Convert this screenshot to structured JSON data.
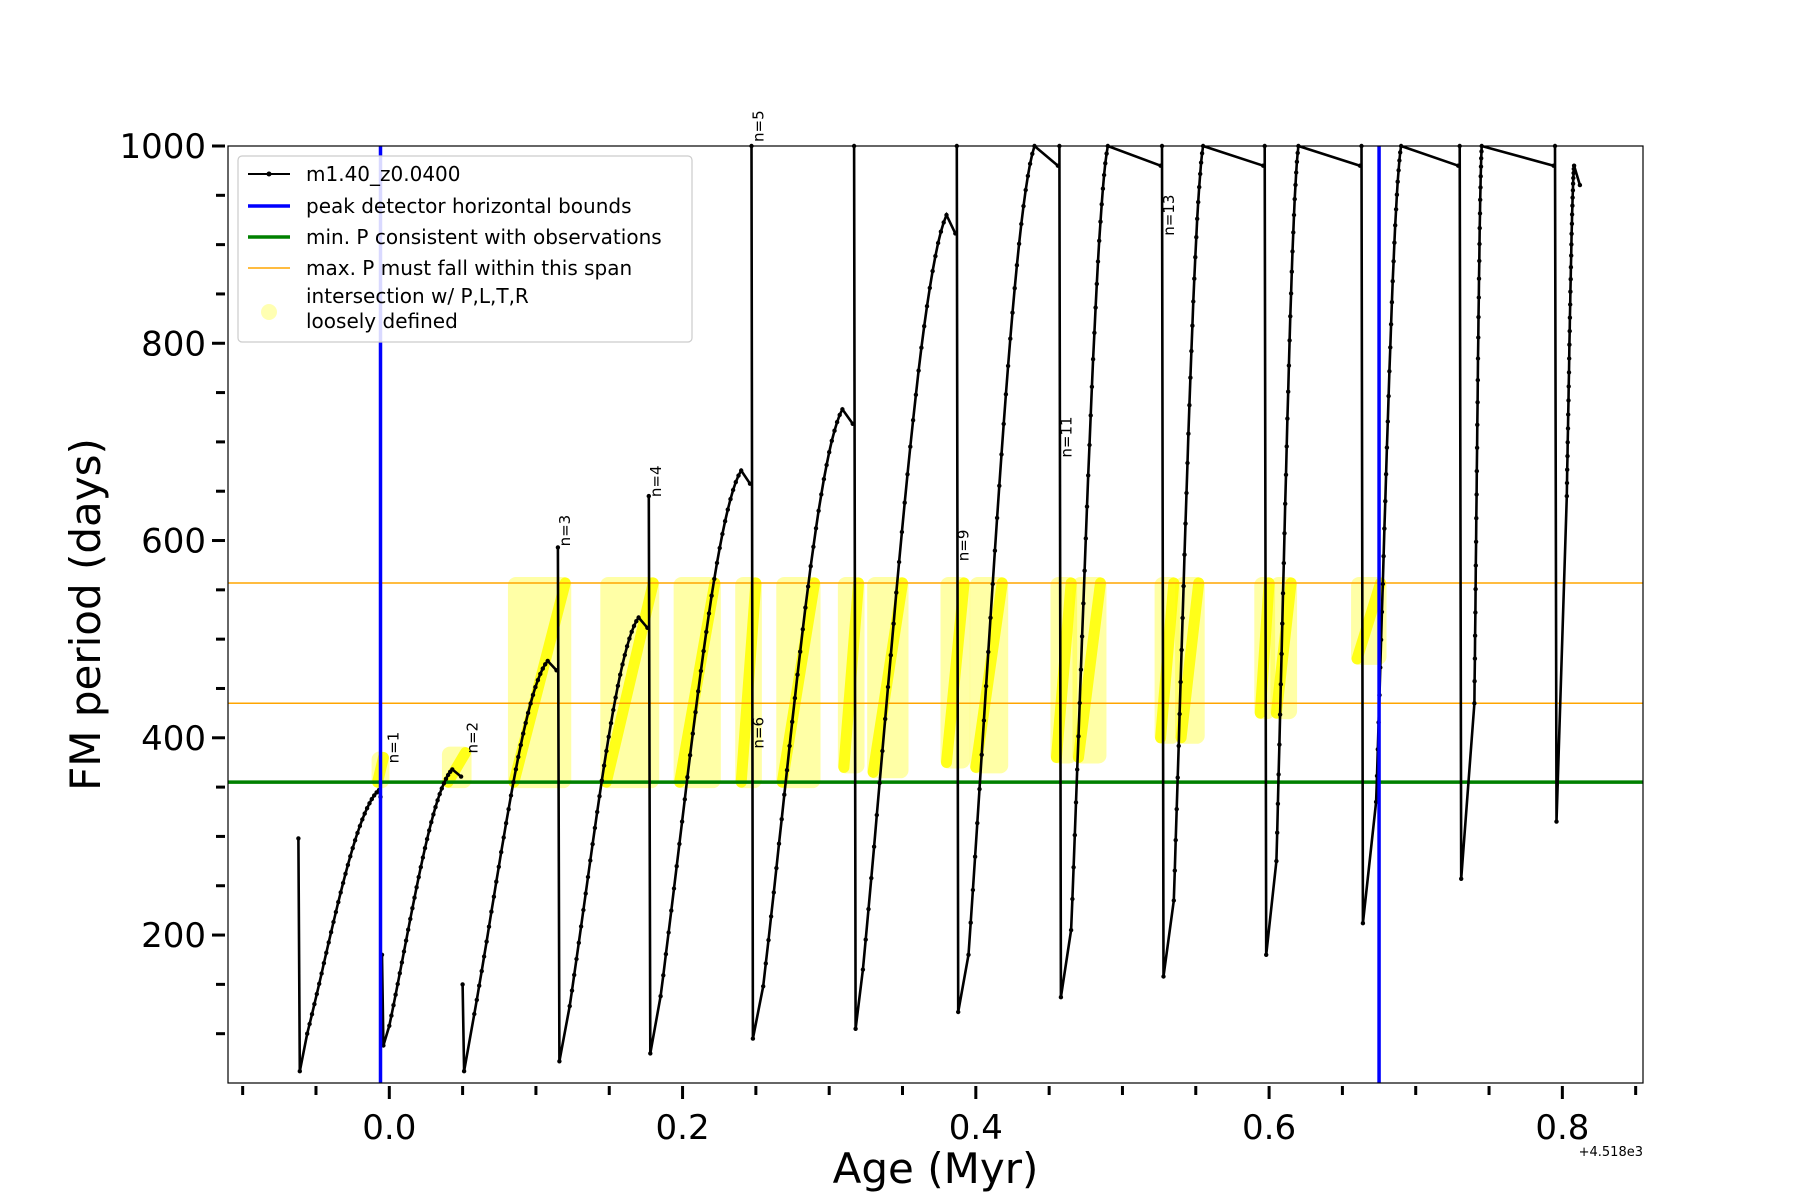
{
  "chart_data": {
    "type": "line",
    "title": "",
    "xlabel": "Age (Myr)",
    "ylabel": "FM period (days)",
    "x_offset_label": "+4.518e3",
    "xlim": [
      -0.11,
      0.855
    ],
    "ylim": [
      50,
      1000
    ],
    "x_ticks": [
      0.0,
      0.2,
      0.4,
      0.6,
      0.8
    ],
    "x_tick_labels": [
      "0.0",
      "0.2",
      "0.4",
      "0.6",
      "0.8"
    ],
    "x_minor_ticks": [
      -0.1,
      -0.05,
      0.05,
      0.1,
      0.15,
      0.25,
      0.3,
      0.35,
      0.45,
      0.5,
      0.55,
      0.65,
      0.7,
      0.75,
      0.85
    ],
    "y_ticks": [
      200,
      400,
      600,
      800,
      1000
    ],
    "y_tick_labels": [
      "200",
      "400",
      "600",
      "800",
      "1000"
    ],
    "y_minor_ticks": [
      100,
      150,
      250,
      300,
      350,
      450,
      500,
      550,
      650,
      700,
      750,
      850,
      900,
      950
    ],
    "legend": {
      "location": "upper-left",
      "entries": [
        {
          "label": "m1.40_z0.0400",
          "style": "black line with markers"
        },
        {
          "label": "peak detector horizontal bounds",
          "style": "blue line"
        },
        {
          "label": "min. P consistent with observations",
          "style": "green line"
        },
        {
          "label": "max. P must fall within this span",
          "style": "orange line"
        },
        {
          "label_lines": [
            "intersection w/ P,L,T,R",
            "loosely defined"
          ],
          "style": "yellow circle"
        }
      ]
    },
    "vertical_lines": [
      {
        "name": "peak detector horizontal bounds",
        "x": -0.006,
        "color": "#0000ff"
      },
      {
        "name": "peak detector horizontal bounds",
        "x": 0.675,
        "color": "#0000ff"
      }
    ],
    "horizontal_lines": [
      {
        "name": "min. P consistent with observations",
        "y": 355,
        "color": "#008000"
      },
      {
        "name": "max. P must fall within this span",
        "y": 435,
        "color": "#ffa500"
      },
      {
        "name": "max. P must fall within this span",
        "y": 557,
        "color": "#ffa500"
      }
    ],
    "series": [
      {
        "name": "m1.40_z0.0400",
        "color": "#000000",
        "pulses": [
          {
            "x_start": -0.062,
            "x_peak": -0.007,
            "y_peak": 347,
            "x_end": 0.052,
            "y_min": 62,
            "y_spike": 298,
            "x_min": -0.056,
            "y_min_bottom": 100
          },
          {
            "x_start": -0.005,
            "x_peak": 0.043,
            "y_peak": 368,
            "x_min": 0.0,
            "y_min": 88,
            "y_spike": 180,
            "y_min_bottom": 108
          },
          {
            "x_start": 0.05,
            "x_peak": 0.108,
            "y_peak": 478,
            "x_min": 0.058,
            "y_min": 62,
            "y_spike": 150,
            "y_min_bottom": 120
          },
          {
            "x_start": 0.115,
            "x_peak": 0.17,
            "y_peak": 522,
            "x_min": 0.123,
            "y_min": 72,
            "y_spike": 593,
            "y_min_bottom": 128
          },
          {
            "x_start": 0.177,
            "x_peak": 0.24,
            "y_peak": 671,
            "x_min": 0.185,
            "y_min": 80,
            "y_spike": 645,
            "y_min_bottom": 138
          },
          {
            "x_start": 0.247,
            "x_peak": 0.309,
            "y_peak": 733,
            "x_min": 0.255,
            "y_min": 95,
            "y_spike": 1000,
            "y_min_bottom": 148
          },
          {
            "x_start": 0.317,
            "x_peak": 0.38,
            "y_peak": 930,
            "x_min": 0.323,
            "y_min": 105,
            "y_spike": 1000,
            "y_min_bottom": 165
          },
          {
            "x_start": 0.387,
            "x_peak": 0.44,
            "y_peak": 1000,
            "x_min": 0.395,
            "y_min": 122,
            "y_spike": 1000,
            "y_min_bottom": 180
          },
          {
            "x_start": 0.457,
            "x_peak": 0.49,
            "y_peak": 1000,
            "x_min": 0.465,
            "y_min": 137,
            "y_spike": 1000,
            "y_min_bottom": 205
          },
          {
            "x_start": 0.527,
            "x_peak": 0.555,
            "y_peak": 1000,
            "x_min": 0.535,
            "y_min": 158,
            "y_spike": 1000,
            "y_min_bottom": 235
          },
          {
            "x_start": 0.597,
            "x_peak": 0.62,
            "y_peak": 1000,
            "x_min": 0.605,
            "y_min": 180,
            "y_spike": 1000,
            "y_min_bottom": 275
          },
          {
            "x_start": 0.663,
            "x_peak": 0.69,
            "y_peak": 1000,
            "x_min": 0.673,
            "y_min": 212,
            "y_spike": 1000,
            "y_min_bottom": 335
          },
          {
            "x_start": 0.73,
            "x_peak": 0.745,
            "y_peak": 1000,
            "x_min": 0.74,
            "y_min": 257,
            "y_spike": 1000,
            "y_min_bottom": 435
          },
          {
            "x_start": 0.795,
            "x_peak": 0.808,
            "y_peak": 980,
            "x_min": 0.803,
            "y_min": 315,
            "y_spike": 1000,
            "y_min_bottom": 645
          }
        ]
      }
    ],
    "intersections_color": "#ffff00",
    "intersections": [
      {
        "x0": -0.008,
        "x1": -0.004,
        "y0": 355,
        "y1": 380
      },
      {
        "x0": 0.04,
        "x1": 0.052,
        "y0": 355,
        "y1": 385
      },
      {
        "x0": 0.085,
        "x1": 0.12,
        "y0": 355,
        "y1": 557
      },
      {
        "x0": 0.148,
        "x1": 0.18,
        "y0": 355,
        "y1": 557
      },
      {
        "x0": 0.198,
        "x1": 0.222,
        "y0": 355,
        "y1": 557
      },
      {
        "x0": 0.24,
        "x1": 0.25,
        "y0": 355,
        "y1": 557
      },
      {
        "x0": 0.268,
        "x1": 0.29,
        "y0": 355,
        "y1": 557
      },
      {
        "x0": 0.31,
        "x1": 0.32,
        "y0": 370,
        "y1": 557
      },
      {
        "x0": 0.33,
        "x1": 0.35,
        "y0": 365,
        "y1": 557
      },
      {
        "x0": 0.38,
        "x1": 0.392,
        "y0": 375,
        "y1": 557
      },
      {
        "x0": 0.4,
        "x1": 0.418,
        "y0": 370,
        "y1": 557
      },
      {
        "x0": 0.455,
        "x1": 0.465,
        "y0": 380,
        "y1": 557
      },
      {
        "x0": 0.47,
        "x1": 0.485,
        "y0": 380,
        "y1": 557
      },
      {
        "x0": 0.526,
        "x1": 0.535,
        "y0": 400,
        "y1": 557
      },
      {
        "x0": 0.54,
        "x1": 0.552,
        "y0": 400,
        "y1": 557
      },
      {
        "x0": 0.594,
        "x1": 0.6,
        "y0": 425,
        "y1": 557
      },
      {
        "x0": 0.605,
        "x1": 0.615,
        "y0": 425,
        "y1": 557
      },
      {
        "x0": 0.66,
        "x1": 0.676,
        "y0": 480,
        "y1": 557
      }
    ],
    "annotations": [
      {
        "text": "n=1",
        "x": -0.002,
        "y": 370
      },
      {
        "text": "n=2",
        "x": 0.1,
        "y": 380,
        "x_actual": 0.052
      },
      {
        "text": "n=3",
        "x": 0.115,
        "y": 590
      },
      {
        "text": "n=4",
        "x": 0.177,
        "y": 640
      },
      {
        "text": "n=5",
        "x": 0.247,
        "y": 1000
      },
      {
        "text": "n=6",
        "x": 0.247,
        "y": 385
      },
      {
        "text": "n=9",
        "x": 0.387,
        "y": 575
      },
      {
        "text": "n=11",
        "x": 0.457,
        "y": 680
      },
      {
        "text": "n=13",
        "x": 0.527,
        "y": 905
      }
    ]
  }
}
